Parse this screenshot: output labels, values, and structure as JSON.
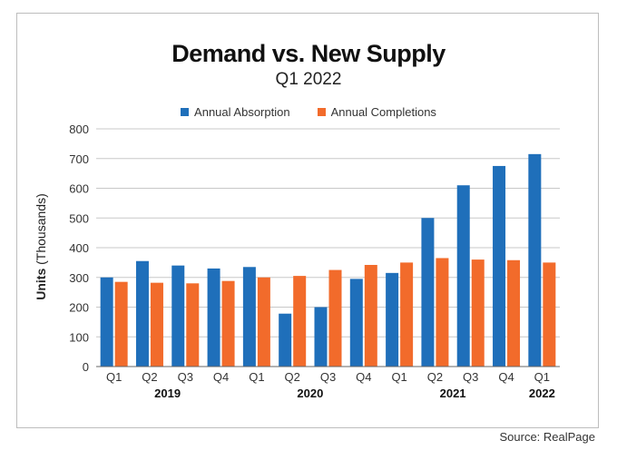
{
  "chart_data": {
    "type": "bar",
    "title": "Demand vs. New Supply",
    "subtitle": "Q1 2022",
    "ylabel_bold": "Units",
    "ylabel_rest": "(Thousands)",
    "ylim": [
      0,
      800
    ],
    "yticks": [
      0,
      100,
      200,
      300,
      400,
      500,
      600,
      700,
      800
    ],
    "grid": true,
    "legend_position": "top-center",
    "categories": [
      "Q1",
      "Q2",
      "Q3",
      "Q4",
      "Q1",
      "Q2",
      "Q3",
      "Q4",
      "Q1",
      "Q2",
      "Q3",
      "Q4",
      "Q1"
    ],
    "year_groups": [
      {
        "label": "2019",
        "start": 0,
        "end": 3
      },
      {
        "label": "2020",
        "start": 4,
        "end": 7
      },
      {
        "label": "2021",
        "start": 8,
        "end": 11
      },
      {
        "label": "2022",
        "start": 12,
        "end": 12
      }
    ],
    "series": [
      {
        "name": "Annual Absorption",
        "color": "#1f6fba",
        "values": [
          300,
          355,
          340,
          330,
          335,
          178,
          200,
          295,
          315,
          500,
          610,
          675,
          715
        ]
      },
      {
        "name": "Annual Completions",
        "color": "#f26b2b",
        "values": [
          285,
          282,
          280,
          288,
          300,
          305,
          325,
          342,
          350,
          365,
          360,
          358,
          350
        ]
      }
    ],
    "source": "Source: RealPage"
  }
}
